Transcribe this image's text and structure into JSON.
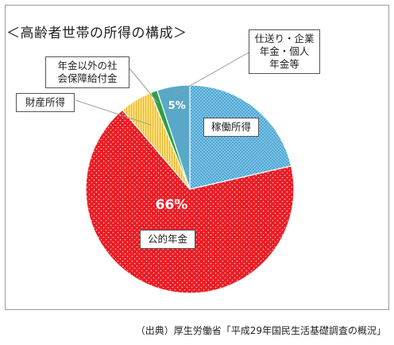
{
  "chart_data": {
    "type": "pie",
    "title": "＜高齢者世帯の所得の構成＞",
    "slices": [
      {
        "label": "稼働所得",
        "value": 21,
        "display_pct": "",
        "color": "#4aa7d6",
        "pattern": "dots-small"
      },
      {
        "label": "公的年金",
        "value": 66,
        "display_pct": "66%",
        "color": "#ea1c24",
        "pattern": "dots"
      },
      {
        "label": "財産所得",
        "value": 5,
        "display_pct": "",
        "color": "#ffe27a",
        "pattern": "stripes"
      },
      {
        "label": "年金以外の社\n会保障給付金",
        "value": 1,
        "display_pct": "",
        "color": "#2e9e4a",
        "pattern": "none"
      },
      {
        "label": "仕送り・企業\n年金・個人\n年金等",
        "value": 5,
        "display_pct": "5%",
        "color": "#5aa8c8",
        "pattern": "none"
      }
    ],
    "start_angle_deg": 90,
    "direction": "clockwise",
    "legend": "callouts"
  },
  "source": "（出典）厚生労働省「平成29年国民生活基礎調査の概況」"
}
